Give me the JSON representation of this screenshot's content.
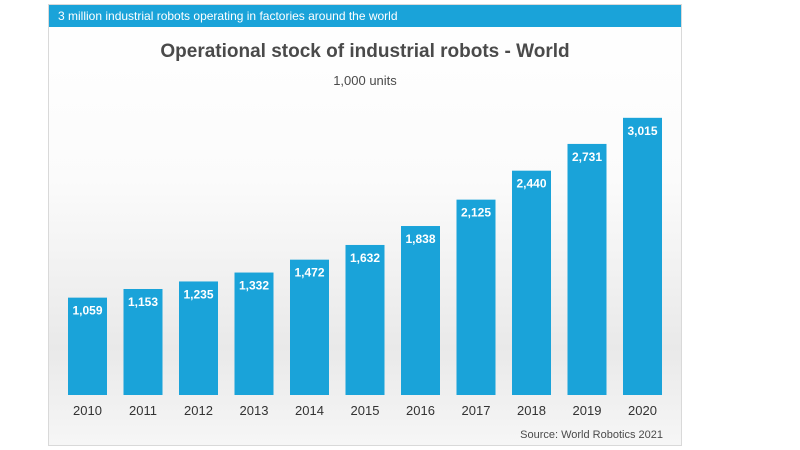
{
  "banner": {
    "text": "3 million industrial robots operating in factories around the world"
  },
  "chart_data": {
    "type": "bar",
    "title": "Operational stock of industrial robots - World",
    "subtitle": "1,000 units",
    "xlabel": "",
    "ylabel": "1,000 units",
    "categories": [
      "2010",
      "2011",
      "2012",
      "2013",
      "2014",
      "2015",
      "2016",
      "2017",
      "2018",
      "2019",
      "2020"
    ],
    "values": [
      1059,
      1153,
      1235,
      1332,
      1472,
      1632,
      1838,
      2125,
      2440,
      2731,
      3015
    ],
    "data_labels": [
      "1,059",
      "1,153",
      "1,235",
      "1,332",
      "1,472",
      "1,632",
      "1,838",
      "2,125",
      "2,440",
      "2,731",
      "3,015"
    ],
    "ylim": [
      0,
      3100
    ],
    "grid": false,
    "bar_color": "#1aa3d9",
    "source": "Source: World Robotics 2021"
  }
}
